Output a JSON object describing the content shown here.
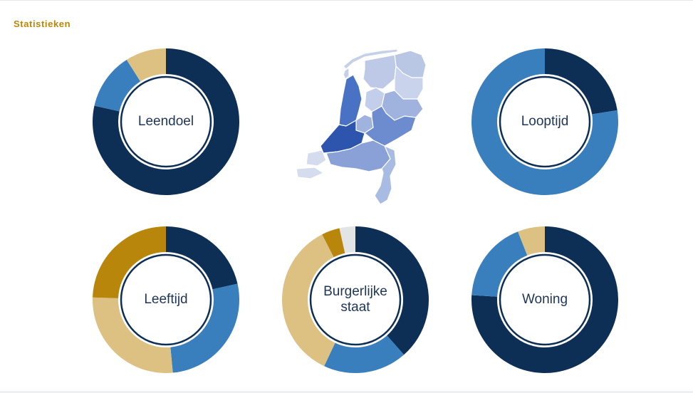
{
  "header": {
    "title": "Statistieken"
  },
  "colors": {
    "navy": "#0e2f55",
    "blue": "#3a7fbd",
    "tan": "#dcc183",
    "gold": "#b8860b",
    "light": "#e3e4e6"
  },
  "charts": [
    {
      "id": "leendoel",
      "label": "Leendoel",
      "segments": [
        {
          "value": 0.785,
          "color": "navy"
        },
        {
          "value": 0.125,
          "color": "blue"
        },
        {
          "value": 0.09,
          "color": "tan"
        }
      ]
    },
    {
      "id": "looptijd",
      "label": "Looptijd",
      "segments": [
        {
          "value": 0.225,
          "color": "navy"
        },
        {
          "value": 0.775,
          "color": "blue"
        }
      ]
    },
    {
      "id": "leeftijd",
      "label": "Leeftijd",
      "segments": [
        {
          "value": 0.215,
          "color": "navy"
        },
        {
          "value": 0.27,
          "color": "blue"
        },
        {
          "value": 0.27,
          "color": "tan"
        },
        {
          "value": 0.245,
          "color": "gold"
        }
      ]
    },
    {
      "id": "burgerlijke-staat",
      "label": "Burgerlijke\nstaat",
      "segments": [
        {
          "value": 0.385,
          "color": "navy"
        },
        {
          "value": 0.185,
          "color": "blue"
        },
        {
          "value": 0.355,
          "color": "tan"
        },
        {
          "value": 0.04,
          "color": "gold"
        },
        {
          "value": 0.035,
          "color": "light"
        }
      ]
    },
    {
      "id": "woning",
      "label": "Woning",
      "segments": [
        {
          "value": 0.76,
          "color": "navy"
        },
        {
          "value": 0.18,
          "color": "blue"
        },
        {
          "value": 0.06,
          "color": "tan"
        }
      ]
    }
  ]
}
